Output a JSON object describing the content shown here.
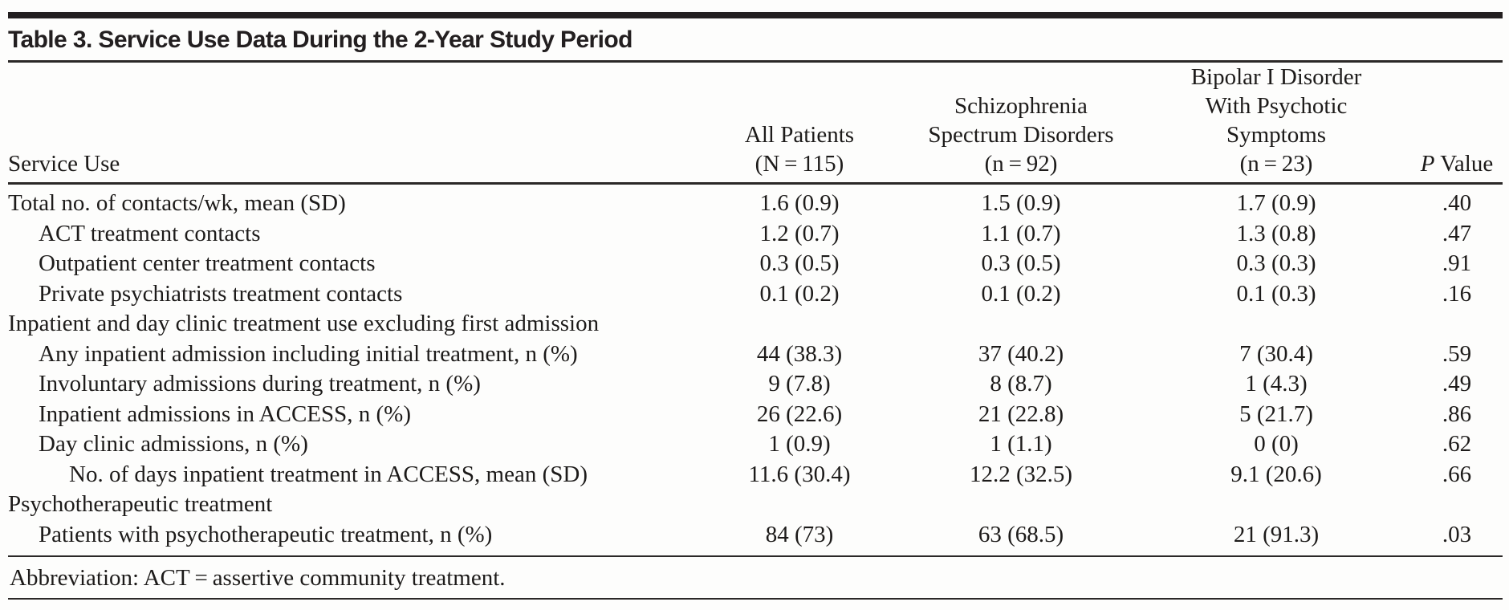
{
  "title": "Table 3. Service Use Data During the 2-Year Study Period",
  "table": {
    "columns": [
      {
        "lines": [
          "Service Use"
        ]
      },
      {
        "lines": [
          "All Patients",
          "(N = 115)"
        ]
      },
      {
        "lines": [
          "Schizophrenia",
          "Spectrum Disorders",
          "(n = 92)"
        ]
      },
      {
        "lines": [
          "Bipolar I Disorder",
          "With Psychotic",
          "Symptoms",
          "(n = 23)"
        ]
      },
      {
        "label_italic": "P",
        "label_rest": " Value"
      }
    ],
    "rows": [
      {
        "label": "Total no. of contacts/wk, mean (SD)",
        "indent": 0,
        "values": [
          "1.6 (0.9)",
          "1.5 (0.9)",
          "1.7 (0.9)",
          ".40"
        ]
      },
      {
        "label": "ACT treatment contacts",
        "indent": 1,
        "values": [
          "1.2 (0.7)",
          "1.1 (0.7)",
          "1.3 (0.8)",
          ".47"
        ]
      },
      {
        "label": "Outpatient center treatment contacts",
        "indent": 1,
        "values": [
          "0.3 (0.5)",
          "0.3 (0.5)",
          "0.3 (0.3)",
          ".91"
        ]
      },
      {
        "label": "Private psychiatrists treatment contacts",
        "indent": 1,
        "values": [
          "0.1 (0.2)",
          "0.1 (0.2)",
          "0.1 (0.3)",
          ".16"
        ]
      },
      {
        "label": "Inpatient and day clinic treatment use excluding first admission",
        "indent": 0,
        "values": []
      },
      {
        "label": "Any inpatient admission including initial treatment, n (%)",
        "indent": 1,
        "values": [
          "44 (38.3)",
          "37 (40.2)",
          "7 (30.4)",
          ".59"
        ]
      },
      {
        "label": "Involuntary admissions during treatment, n (%)",
        "indent": 1,
        "values": [
          "9 (7.8)",
          "8 (8.7)",
          "1 (4.3)",
          ".49"
        ]
      },
      {
        "label": "Inpatient admissions in ACCESS, n (%)",
        "indent": 1,
        "values": [
          "26 (22.6)",
          "21 (22.8)",
          "5 (21.7)",
          ".86"
        ]
      },
      {
        "label": "Day clinic admissions, n (%)",
        "indent": 1,
        "values": [
          "1 (0.9)",
          "1 (1.1)",
          "0 (0)",
          ".62"
        ]
      },
      {
        "label": "No. of days inpatient treatment in ACCESS, mean (SD)",
        "indent": 2,
        "values": [
          "11.6 (30.4)",
          "12.2 (32.5)",
          "9.1 (20.6)",
          ".66"
        ]
      },
      {
        "label": "Psychotherapeutic treatment",
        "indent": 0,
        "values": []
      },
      {
        "label": "Patients with psychotherapeutic treatment, n (%)",
        "indent": 1,
        "values": [
          "84 (73)",
          "63 (68.5)",
          "21 (91.3)",
          ".03"
        ]
      }
    ]
  },
  "footnote": "Abbreviation: ACT = assertive community treatment."
}
